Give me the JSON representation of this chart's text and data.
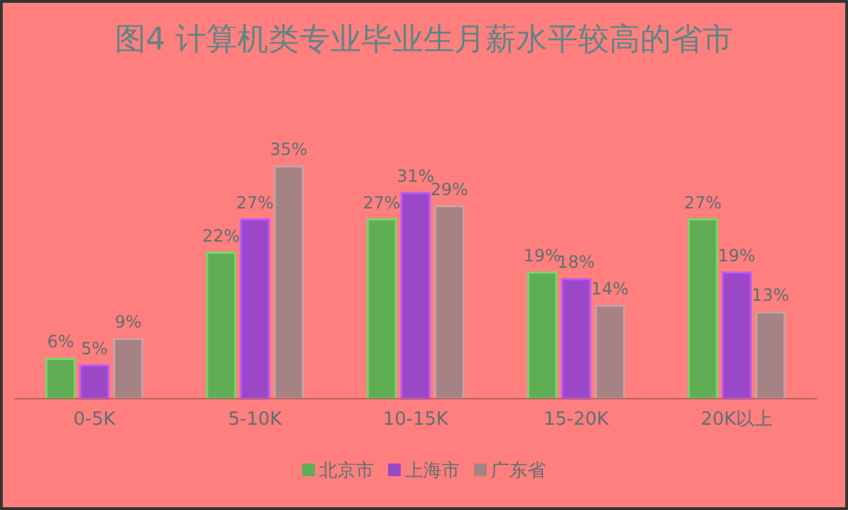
{
  "chart_data": {
    "type": "bar",
    "title": "图4  计算机类专业毕业生月薪水平较高的省市",
    "categories": [
      "0-5K",
      "5-10K",
      "10-15K",
      "15-20K",
      "20K以上"
    ],
    "series": [
      {
        "name": "北京市",
        "color": "#5fae55",
        "values": [
          6,
          22,
          27,
          19,
          27
        ],
        "value_labels": [
          "6%",
          "22%",
          "27%",
          "19%",
          "27%"
        ]
      },
      {
        "name": "上海市",
        "color": "#9a48c8",
        "values": [
          5,
          27,
          31,
          18,
          19
        ],
        "value_labels": [
          "5%",
          "27%",
          "31%",
          "18%",
          "19%"
        ]
      },
      {
        "name": "广东省",
        "color": "#a58283",
        "values": [
          9,
          35,
          29,
          14,
          13
        ],
        "value_labels": [
          "9%",
          "35%",
          "29%",
          "14%",
          "13%"
        ]
      }
    ],
    "legend": "bottom"
  }
}
